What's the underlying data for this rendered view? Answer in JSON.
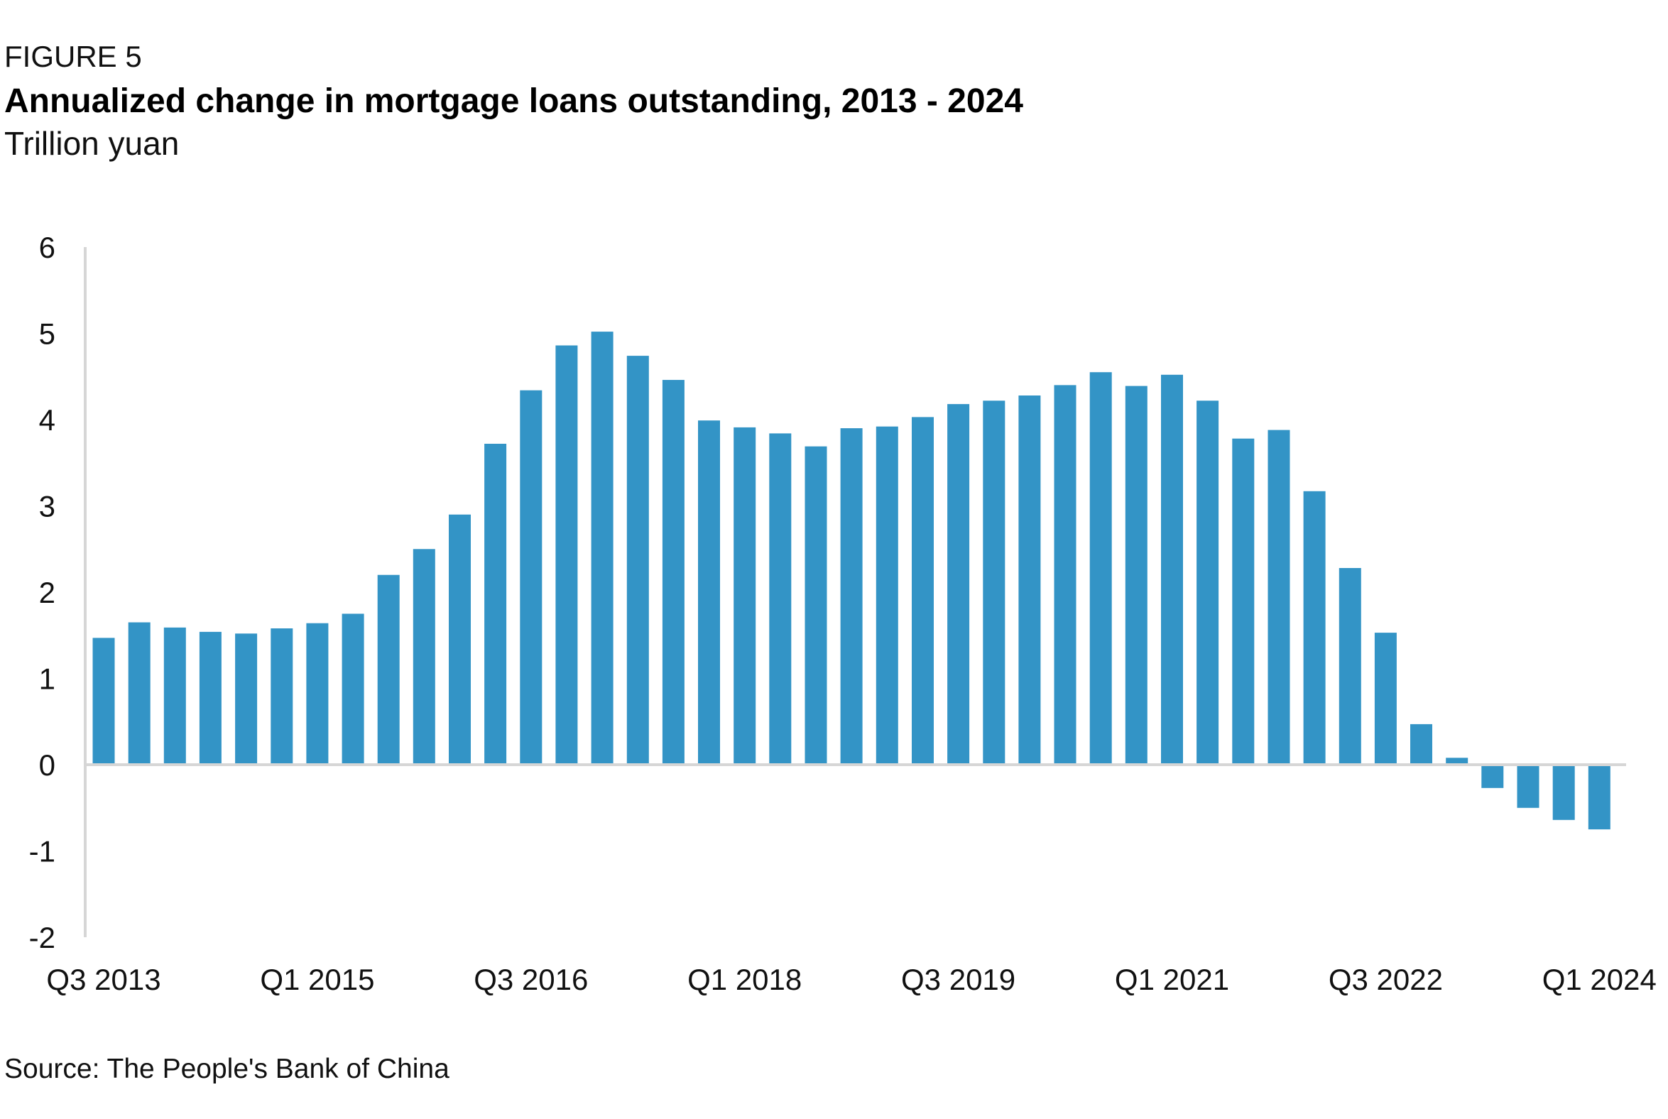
{
  "figure_label": "FIGURE 5",
  "title": "Annualized change in mortgage loans outstanding, 2013 - 2024",
  "subtitle": "Trillion yuan",
  "source": "Source: The People's Bank of China",
  "colors": {
    "bar": "#3394c6",
    "axis": "#d6d6d6",
    "text": "#111111"
  },
  "chart_data": {
    "type": "bar",
    "title": "Annualized change in mortgage loans outstanding, 2013 - 2024",
    "subtitle": "Trillion yuan",
    "xlabel": "",
    "ylabel": "",
    "ylim": [
      -2,
      6
    ],
    "yticks": [
      6,
      5,
      4,
      3,
      2,
      1,
      0,
      -1,
      -2
    ],
    "grid": false,
    "legend": "none",
    "x_tick_labels": [
      "Q3 2013",
      "Q1 2015",
      "Q3 2016",
      "Q1 2018",
      "Q3 2019",
      "Q1 2021",
      "Q3 2022",
      "Q1 2024"
    ],
    "categories": [
      "Q3 2013",
      "Q4 2013",
      "Q1 2014",
      "Q2 2014",
      "Q3 2014",
      "Q4 2014",
      "Q1 2015",
      "Q2 2015",
      "Q3 2015",
      "Q4 2015",
      "Q1 2016",
      "Q2 2016",
      "Q3 2016",
      "Q4 2016",
      "Q1 2017",
      "Q2 2017",
      "Q3 2017",
      "Q4 2017",
      "Q1 2018",
      "Q2 2018",
      "Q3 2018",
      "Q4 2018",
      "Q1 2019",
      "Q2 2019",
      "Q3 2019",
      "Q4 2019",
      "Q1 2020",
      "Q2 2020",
      "Q3 2020",
      "Q4 2020",
      "Q1 2021",
      "Q2 2021",
      "Q3 2021",
      "Q4 2021",
      "Q1 2022",
      "Q2 2022",
      "Q3 2022",
      "Q4 2022",
      "Q1 2023",
      "Q2 2023",
      "Q3 2023",
      "Q4 2023",
      "Q1 2024"
    ],
    "values": [
      1.47,
      1.65,
      1.59,
      1.54,
      1.52,
      1.58,
      1.64,
      1.75,
      2.2,
      2.5,
      2.9,
      3.72,
      4.34,
      4.86,
      5.02,
      4.74,
      4.46,
      3.99,
      3.91,
      3.84,
      3.69,
      3.9,
      3.92,
      4.03,
      4.18,
      4.22,
      4.28,
      4.4,
      4.55,
      4.39,
      4.52,
      4.22,
      3.78,
      3.88,
      3.17,
      2.28,
      1.53,
      0.47,
      0.08,
      -0.27,
      -0.5,
      -0.64,
      -0.75
    ]
  }
}
